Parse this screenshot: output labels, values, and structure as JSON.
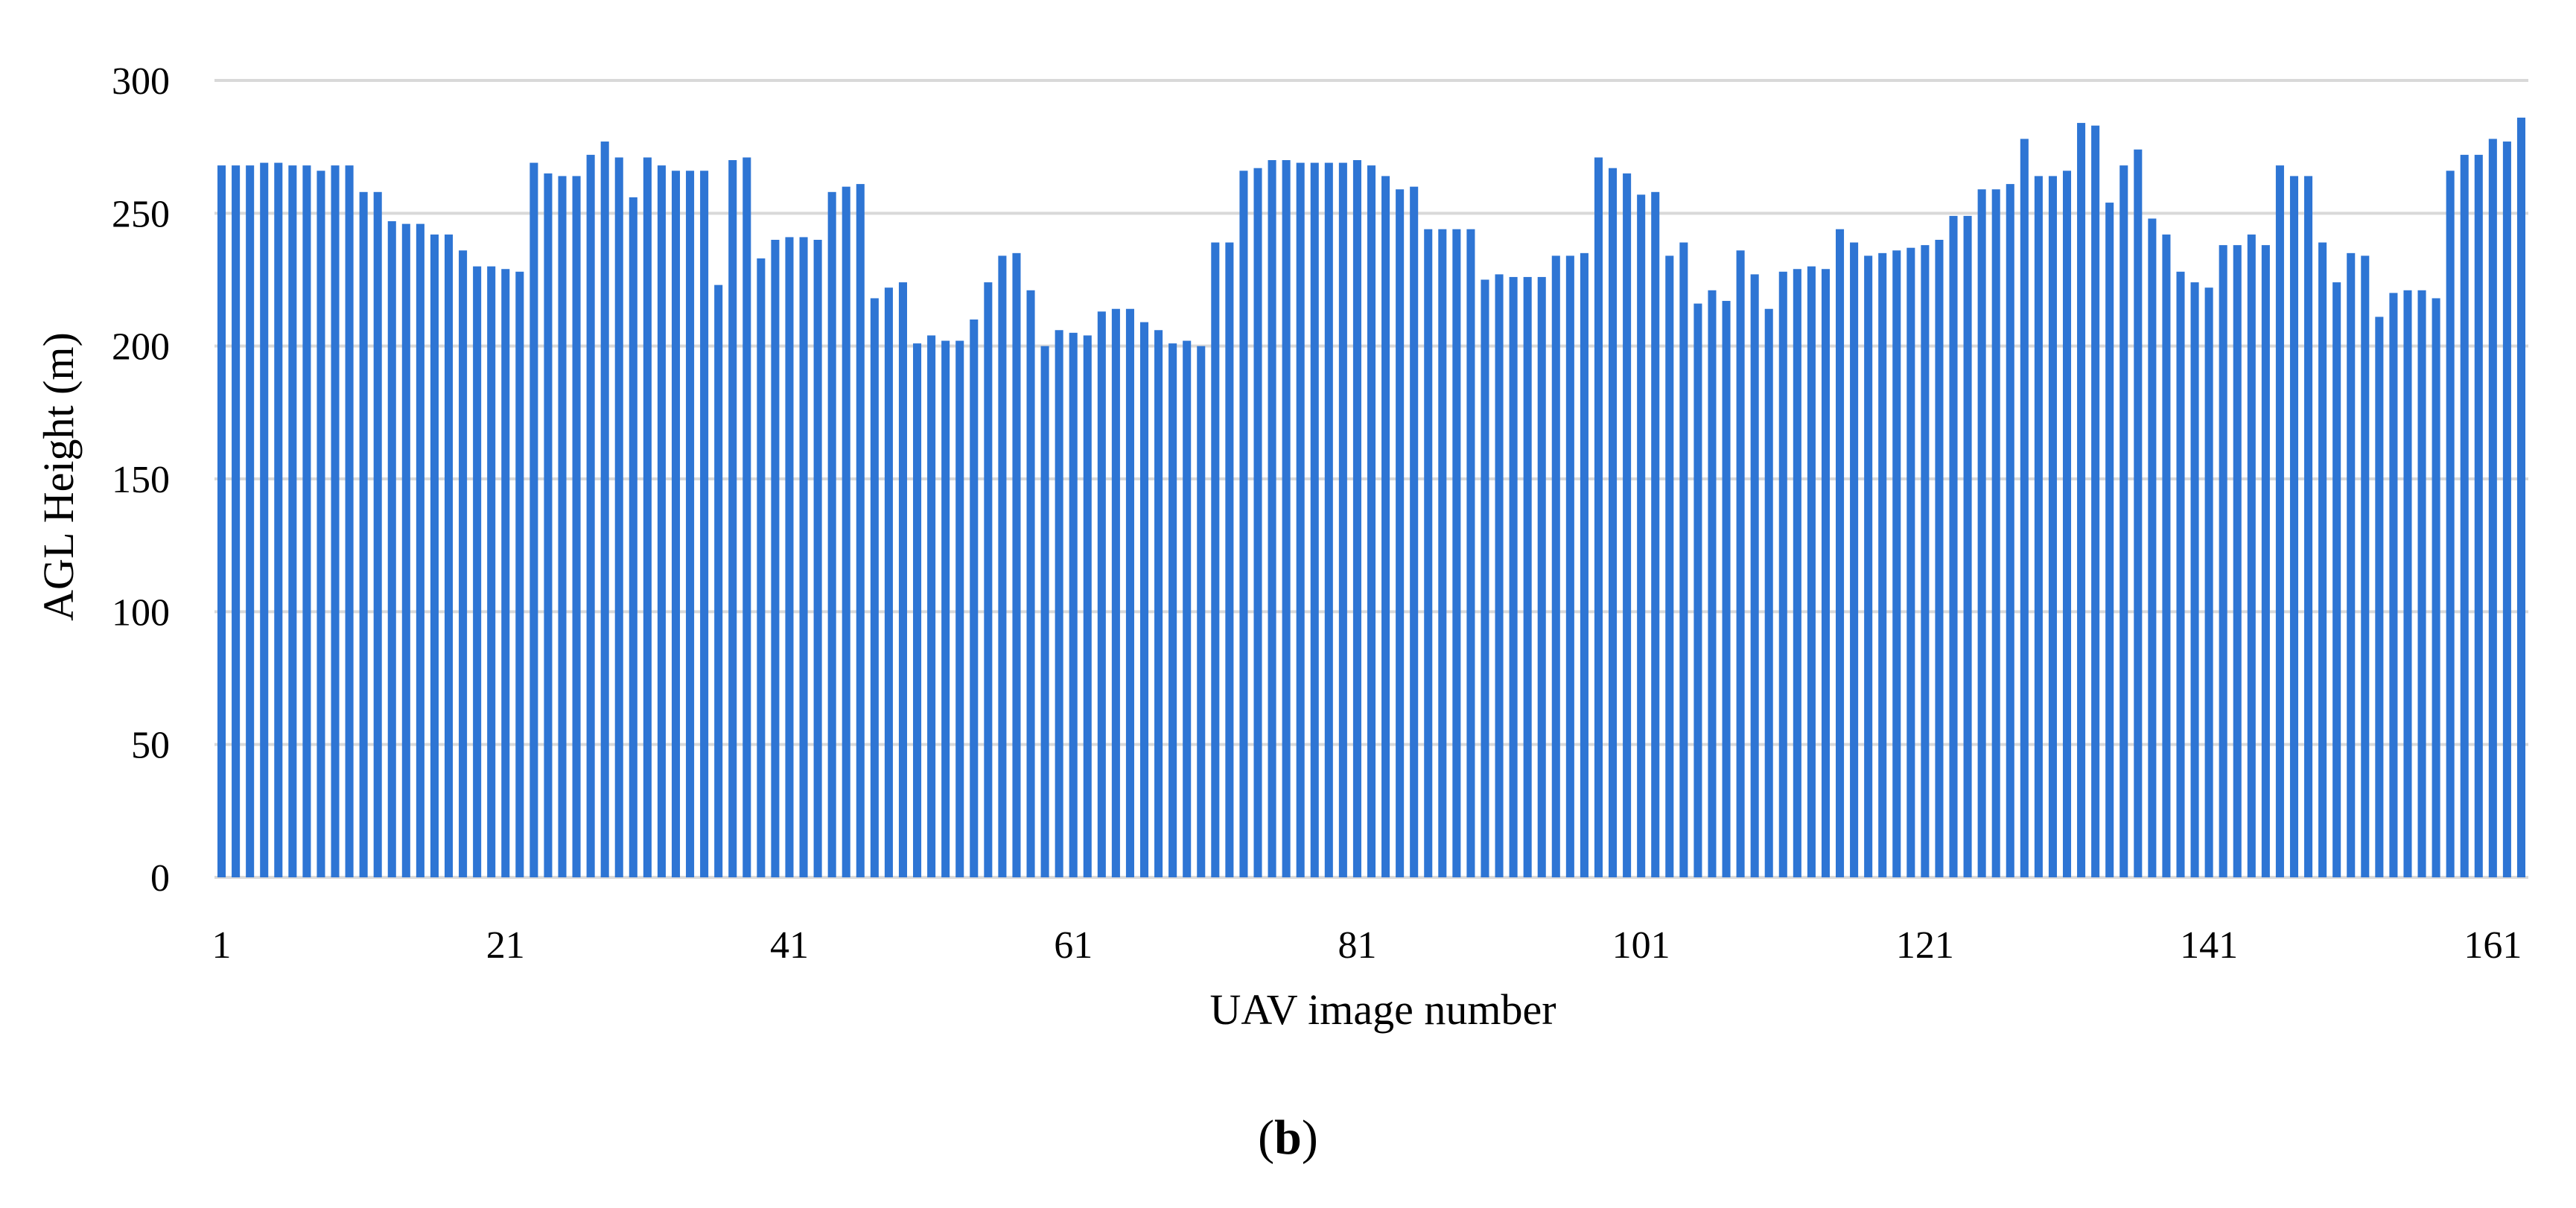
{
  "chart_data": {
    "type": "bar",
    "xlabel": "UAV image number",
    "ylabel": "AGL Height (m)",
    "ylim": [
      0,
      300
    ],
    "yticks": [
      0,
      50,
      100,
      150,
      200,
      250,
      300
    ],
    "xtick_labels": [
      "1",
      "21",
      "41",
      "61",
      "81",
      "101",
      "121",
      "141",
      "161"
    ],
    "grid": true,
    "bar_color": "#2e75d4",
    "grid_color": "#d9d9d9",
    "x": [
      1,
      2,
      3,
      4,
      5,
      6,
      7,
      8,
      9,
      10,
      11,
      12,
      13,
      14,
      15,
      16,
      17,
      18,
      19,
      20,
      21,
      22,
      23,
      24,
      25,
      26,
      27,
      28,
      29,
      30,
      31,
      32,
      33,
      34,
      35,
      36,
      37,
      38,
      39,
      40,
      41,
      42,
      43,
      44,
      45,
      46,
      47,
      48,
      49,
      50,
      51,
      52,
      53,
      54,
      55,
      56,
      57,
      58,
      59,
      60,
      61,
      62,
      63,
      64,
      65,
      66,
      67,
      68,
      69,
      70,
      71,
      72,
      73,
      74,
      75,
      76,
      77,
      78,
      79,
      80,
      81,
      82,
      83,
      84,
      85,
      86,
      87,
      88,
      89,
      90,
      91,
      92,
      93,
      94,
      95,
      96,
      97,
      98,
      99,
      100,
      101,
      102,
      103,
      104,
      105,
      106,
      107,
      108,
      109,
      110,
      111,
      112,
      113,
      114,
      115,
      116,
      117,
      118,
      119,
      120,
      121,
      122,
      123,
      124,
      125,
      126,
      127,
      128,
      129,
      130,
      131,
      132,
      133,
      134,
      135,
      136,
      137,
      138,
      139,
      140,
      141,
      142,
      143,
      144,
      145,
      146,
      147,
      148,
      149,
      150,
      151,
      152,
      153,
      154,
      155,
      156,
      157,
      158,
      159,
      160,
      161,
      162,
      163
    ],
    "values": [
      268,
      268,
      268,
      269,
      269,
      268,
      268,
      266,
      268,
      268,
      258,
      258,
      247,
      246,
      246,
      242,
      242,
      236,
      230,
      230,
      229,
      228,
      269,
      265,
      264,
      264,
      272,
      277,
      271,
      256,
      271,
      268,
      266,
      266,
      266,
      223,
      270,
      271,
      233,
      240,
      241,
      241,
      240,
      258,
      260,
      261,
      218,
      222,
      224,
      201,
      204,
      202,
      202,
      210,
      224,
      234,
      235,
      221,
      200,
      206,
      205,
      204,
      213,
      214,
      214,
      209,
      206,
      201,
      202,
      200,
      239,
      239,
      266,
      267,
      270,
      270,
      269,
      269,
      269,
      269,
      270,
      268,
      264,
      259,
      260,
      244,
      244,
      244,
      244,
      225,
      227,
      226,
      226,
      226,
      234,
      234,
      235,
      271,
      267,
      265,
      257,
      258,
      234,
      239,
      216,
      221,
      217,
      236,
      227,
      214,
      228,
      229,
      230,
      229,
      244,
      239,
      234,
      235,
      236,
      237,
      238,
      240,
      249,
      249,
      259,
      259,
      261,
      278,
      264,
      264,
      266,
      284,
      283,
      254,
      268,
      274,
      248,
      242,
      228,
      224,
      222,
      238,
      238,
      242,
      238,
      268,
      264,
      264,
      239,
      224,
      235,
      234,
      211,
      220,
      221,
      221,
      218,
      266,
      272,
      272,
      278,
      277,
      286
    ]
  },
  "caption": {
    "open": "(",
    "letter": "b",
    "close": ")"
  }
}
